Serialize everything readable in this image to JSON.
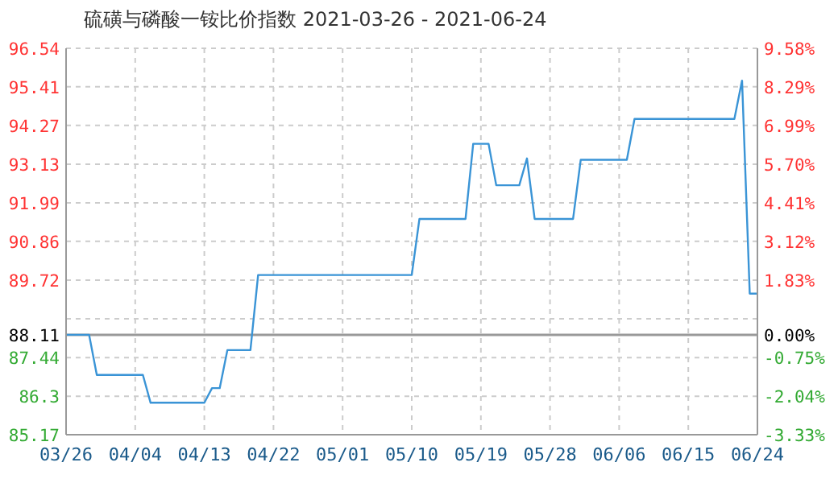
{
  "chart_data": {
    "type": "line",
    "title": "硫磺与磷酸一铵比价指数 2021-03-26 - 2021-06-24",
    "x": [
      "2021-03-26",
      "2021-03-29",
      "2021-03-30",
      "2021-04-05",
      "2021-04-06",
      "2021-04-13",
      "2021-04-14",
      "2021-04-15",
      "2021-04-16",
      "2021-04-19",
      "2021-04-20",
      "2021-05-10",
      "2021-05-11",
      "2021-05-17",
      "2021-05-18",
      "2021-05-20",
      "2021-05-21",
      "2021-05-24",
      "2021-05-25",
      "2021-05-26",
      "2021-05-31",
      "2021-06-01",
      "2021-06-07",
      "2021-06-08",
      "2021-06-21",
      "2021-06-22",
      "2021-06-23",
      "2021-06-24"
    ],
    "series": [
      {
        "color": "#3a94d6",
        "values": [
          88.11,
          88.11,
          86.93,
          86.93,
          86.11,
          86.11,
          86.54,
          86.54,
          87.66,
          87.66,
          89.87,
          89.87,
          91.52,
          91.52,
          93.73,
          93.73,
          92.51,
          92.51,
          93.3,
          91.52,
          91.52,
          93.26,
          93.26,
          94.46,
          94.46,
          95.59,
          89.32,
          89.32
        ]
      }
    ],
    "xlim": [
      "2021-03-26",
      "2021-06-24"
    ],
    "xticks": [
      {
        "value": "2021-03-26",
        "label": "03/26"
      },
      {
        "value": "2021-04-04",
        "label": "04/04"
      },
      {
        "value": "2021-04-13",
        "label": "04/13"
      },
      {
        "value": "2021-04-22",
        "label": "04/22"
      },
      {
        "value": "2021-05-01",
        "label": "05/01"
      },
      {
        "value": "2021-05-10",
        "label": "05/10"
      },
      {
        "value": "2021-05-19",
        "label": "05/19"
      },
      {
        "value": "2021-05-28",
        "label": "05/28"
      },
      {
        "value": "2021-06-06",
        "label": "06/06"
      },
      {
        "value": "2021-06-15",
        "label": "06/15"
      },
      {
        "value": "2021-06-24",
        "label": "06/24"
      }
    ],
    "ylim": [
      85.17,
      96.54
    ],
    "yticks": [
      85.17,
      86.3,
      87.44,
      88.11,
      {
        "value": 88.58,
        "label": null
      },
      89.72,
      90.86,
      91.99,
      93.13,
      94.27,
      95.41,
      96.54
    ],
    "y2lim": [
      -3.33,
      9.58
    ],
    "y2ticks": [
      {
        "value": -3.33,
        "label": "-3.33%"
      },
      {
        "value": -2.04,
        "label": "-2.04%"
      },
      {
        "value": -0.75,
        "label": "-0.75%"
      },
      {
        "value": 0,
        "label": "0.00%"
      },
      {
        "value": 1.83,
        "label": "1.83%"
      },
      {
        "value": 3.12,
        "label": "3.12%"
      },
      {
        "value": 4.41,
        "label": "4.41%"
      },
      {
        "value": 5.7,
        "label": "5.70%"
      },
      {
        "value": 6.99,
        "label": "6.99%"
      },
      {
        "value": 8.29,
        "label": "8.29%"
      },
      {
        "value": 9.58,
        "label": "9.58%"
      }
    ],
    "ref_lines": [
      {
        "axis": "y",
        "value": 88.11,
        "color": "#999999"
      }
    ],
    "grid": true,
    "legend": false,
    "marker": "none",
    "line_style": "solid"
  }
}
